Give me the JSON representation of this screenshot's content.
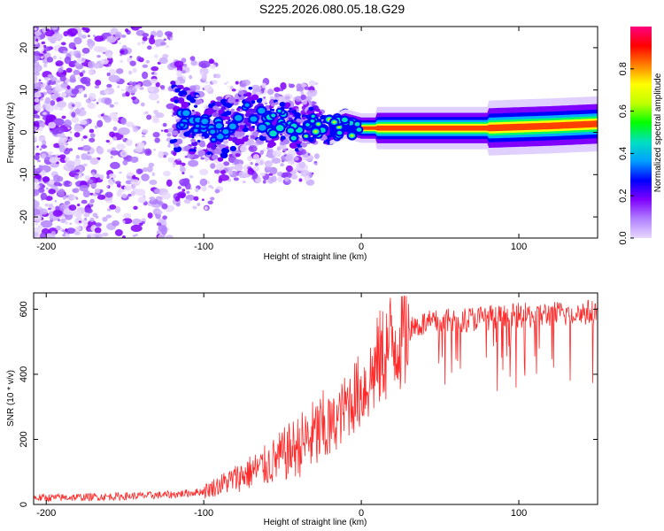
{
  "title": "S225.2026.080.05.18.G29",
  "colors": {
    "snr_line": "#ff2a2a",
    "background": "#ffffff",
    "axis": "#000000"
  },
  "chart_data": [
    {
      "type": "heatmap",
      "name": "spectrogram",
      "xlabel": "Height of straight line (km)",
      "ylabel": "Frequency (Hz)",
      "xlim": [
        -208,
        150
      ],
      "ylim": [
        -25,
        25
      ],
      "xticks": [
        -200,
        -100,
        0,
        100
      ],
      "yticks": [
        -20,
        -10,
        0,
        10,
        20
      ],
      "colorbar": {
        "label": "Normalized spectral amplitude",
        "range": [
          0.0,
          1.0
        ],
        "ticks": [
          "0.0",
          "0.2",
          "0.4",
          "0.6",
          "0.8"
        ],
        "colormap": [
          "#e8d8ff",
          "#b080ff",
          "#8000ff",
          "#0000ff",
          "#00a0ff",
          "#00e0c0",
          "#00ff00",
          "#c0ff00",
          "#ffff00",
          "#ff8000",
          "#ff0000",
          "#ff0080"
        ]
      },
      "ridge": [
        {
          "x": -120,
          "f": 4.0
        },
        {
          "x": -100,
          "f": 2.0
        },
        {
          "x": -90,
          "f": 0.0
        },
        {
          "x": -70,
          "f": 5.0
        },
        {
          "x": -60,
          "f": 1.5
        },
        {
          "x": -50,
          "f": 3.0
        },
        {
          "x": -40,
          "f": 0.0
        },
        {
          "x": -30,
          "f": 2.0
        },
        {
          "x": -20,
          "f": 0.5
        },
        {
          "x": -10,
          "f": 2.0
        },
        {
          "x": 0,
          "f": 1.0
        },
        {
          "x": 10,
          "f": 1.0
        },
        {
          "x": 40,
          "f": 1.0
        },
        {
          "x": 80,
          "f": 1.0
        },
        {
          "x": 120,
          "f": 1.5
        },
        {
          "x": 150,
          "f": 2.0
        }
      ]
    },
    {
      "type": "line",
      "name": "snr",
      "xlabel": "Height of straight line (km)",
      "ylabel": "SNR (10 * v/v)",
      "xlim": [
        -208,
        150
      ],
      "ylim": [
        0,
        650
      ],
      "xticks": [
        -200,
        -100,
        0,
        100
      ],
      "yticks": [
        0,
        200,
        400,
        600
      ],
      "series": [
        {
          "name": "SNR",
          "x": [
            -208,
            -180,
            -150,
            -120,
            -100,
            -90,
            -80,
            -70,
            -60,
            -50,
            -40,
            -30,
            -20,
            -15,
            -10,
            -5,
            0,
            5,
            10,
            15,
            20,
            25,
            30,
            35,
            40,
            50,
            60,
            70,
            80,
            90,
            100,
            110,
            120,
            130,
            140,
            150
          ],
          "values": [
            20,
            22,
            25,
            30,
            40,
            60,
            80,
            100,
            120,
            150,
            180,
            210,
            240,
            260,
            300,
            330,
            350,
            380,
            430,
            470,
            500,
            520,
            540,
            550,
            555,
            560,
            565,
            570,
            575,
            575,
            580,
            580,
            585,
            585,
            590,
            590
          ]
        }
      ]
    }
  ]
}
